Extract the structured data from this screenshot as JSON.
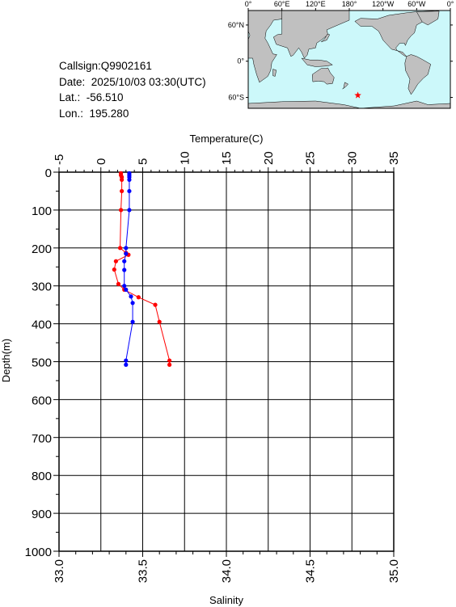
{
  "info": {
    "callsign": "Callsign:Q9902161",
    "date": "Date:  2025/10/03 03:30(UTC)",
    "lat": "Lat.:  -56.510",
    "lon": "Lon.:  195.280"
  },
  "map": {
    "lon_labels": [
      "0°",
      "60°E",
      "120°E",
      "180°",
      "120°W",
      "60°W",
      "0°"
    ],
    "lat_labels": [
      "60°N",
      "0°",
      "60°S"
    ],
    "ocean_color": "#ccf8fa",
    "land_color": "#c0c0c0",
    "marker": {
      "lon": 195.28,
      "lat": -56.51,
      "color": "#ff0000",
      "icon": "star-icon"
    }
  },
  "chart_data": {
    "type": "line",
    "top_axis": {
      "label": "Temperature(C)",
      "range": [
        -5,
        35
      ],
      "ticks": [
        "-5",
        "0",
        "5",
        "10",
        "15",
        "20",
        "25",
        "30",
        "35"
      ]
    },
    "bottom_axis": {
      "label": "Salinity",
      "range": [
        33.0,
        35.0
      ],
      "ticks": [
        "33.0",
        "33.5",
        "34.0",
        "34.5",
        "35.0"
      ]
    },
    "y_axis": {
      "label": "Depth(m)",
      "range": [
        0,
        1000
      ],
      "inverted": true,
      "ticks": [
        "0",
        "100",
        "200",
        "300",
        "400",
        "500",
        "600",
        "700",
        "800",
        "900",
        "1000"
      ]
    },
    "grid": true,
    "series": [
      {
        "axis": "top",
        "color": "#ff0000",
        "depth": [
          3,
          8,
          13,
          20,
          50,
          100,
          200,
          213,
          218,
          235,
          257,
          295,
          310,
          330,
          350,
          395,
          497,
          508
        ],
        "values": [
          2.4,
          2.4,
          2.5,
          2.5,
          2.5,
          2.4,
          2.3,
          3.0,
          3.3,
          1.8,
          1.6,
          2.1,
          2.8,
          4.5,
          6.5,
          7.0,
          8.2,
          8.2
        ]
      },
      {
        "axis": "bottom",
        "color": "#0000ff",
        "depth": [
          3,
          8,
          13,
          20,
          50,
          100,
          200,
          215,
          235,
          258,
          300,
          310,
          328,
          345,
          395,
          497,
          508
        ],
        "values": [
          33.42,
          33.42,
          33.42,
          33.42,
          33.42,
          33.42,
          33.4,
          33.4,
          33.39,
          33.39,
          33.39,
          33.4,
          33.43,
          33.44,
          33.44,
          33.4,
          33.4
        ]
      }
    ]
  }
}
